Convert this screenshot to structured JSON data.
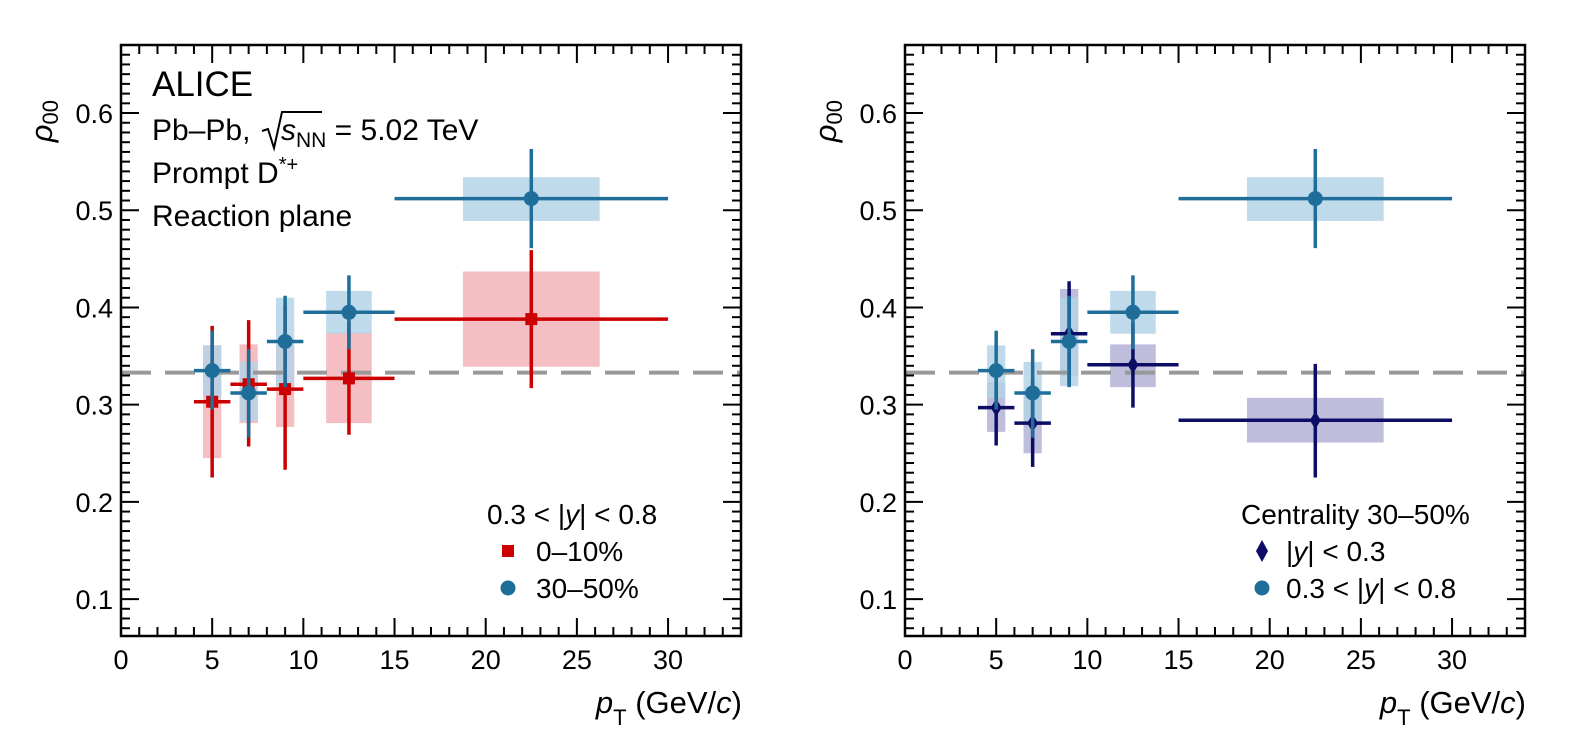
{
  "chart_data": [
    {
      "type": "scatter",
      "xlabel_main": "p",
      "xlabel_sub": "T",
      "xlabel_unit_pre": " (GeV/",
      "xlabel_unit_italic": "c",
      "xlabel_unit_post": ")",
      "ylabel_main": "ρ",
      "ylabel_sub": "00",
      "xlim": [
        0,
        34
      ],
      "ylim": [
        0.062,
        0.67
      ],
      "xticks": [
        "0",
        "5",
        "10",
        "15",
        "20",
        "25",
        "30"
      ],
      "yticks": [
        "0.1",
        "0.2",
        "0.3",
        "0.4",
        "0.5",
        "0.6"
      ],
      "reference_line": 0.333,
      "annotations": {
        "experiment": "ALICE",
        "system_pre": "Pb–Pb, ",
        "system_s": "s",
        "system_nn": "NN",
        "system_post": " = 5.02 TeV",
        "particle_pre": "Prompt D",
        "particle_sup": "*+",
        "method": "Reaction plane"
      },
      "legend": {
        "header_pre": "0.3 < ",
        "header_var": "y",
        "header_post": " < 0.8",
        "placement": "bottom-right"
      },
      "series": [
        {
          "name": "0–10%",
          "marker": "square",
          "color": "#cc0000",
          "syscolor": "#f2b3b8",
          "points": [
            {
              "x": 5.0,
              "xlo": 4,
              "xhi": 6,
              "y": 0.303,
              "ylo": 0.225,
              "yhi": 0.381,
              "sys": [
                0.245,
                0.361
              ]
            },
            {
              "x": 7.0,
              "xlo": 6,
              "xhi": 8,
              "y": 0.321,
              "ylo": 0.257,
              "yhi": 0.387,
              "sys": [
                0.281,
                0.362
              ]
            },
            {
              "x": 9.0,
              "xlo": 8,
              "xhi": 10,
              "y": 0.316,
              "ylo": 0.233,
              "yhi": 0.401,
              "sys": [
                0.277,
                0.361
              ]
            },
            {
              "x": 12.5,
              "xlo": 10,
              "xhi": 15,
              "y": 0.327,
              "ylo": 0.269,
              "yhi": 0.385,
              "sys": [
                0.281,
                0.374
              ]
            },
            {
              "x": 22.5,
              "xlo": 15,
              "xhi": 30,
              "y": 0.388,
              "ylo": 0.317,
              "yhi": 0.459,
              "sys": [
                0.339,
                0.437
              ]
            }
          ]
        },
        {
          "name": "30–50%",
          "marker": "circle",
          "color": "#1f6e9a",
          "syscolor": "#b4d4e6",
          "points": [
            {
              "x": 5.0,
              "xlo": 4,
              "xhi": 6,
              "y": 0.335,
              "ylo": 0.295,
              "yhi": 0.376,
              "sys": [
                0.307,
                0.361
              ]
            },
            {
              "x": 7.0,
              "xlo": 6,
              "xhi": 8,
              "y": 0.312,
              "ylo": 0.266,
              "yhi": 0.357,
              "sys": [
                0.283,
                0.344
              ]
            },
            {
              "x": 9.0,
              "xlo": 8,
              "xhi": 10,
              "y": 0.365,
              "ylo": 0.318,
              "yhi": 0.412,
              "sys": [
                0.319,
                0.41
              ]
            },
            {
              "x": 12.5,
              "xlo": 10,
              "xhi": 15,
              "y": 0.395,
              "ylo": 0.357,
              "yhi": 0.433,
              "sys": [
                0.373,
                0.417
              ]
            },
            {
              "x": 22.5,
              "xlo": 15,
              "xhi": 30,
              "y": 0.512,
              "ylo": 0.461,
              "yhi": 0.563,
              "sys": [
                0.489,
                0.534
              ]
            }
          ]
        }
      ]
    },
    {
      "type": "scatter",
      "xlabel_main": "p",
      "xlabel_sub": "T",
      "xlabel_unit_pre": " (GeV/",
      "xlabel_unit_italic": "c",
      "xlabel_unit_post": ")",
      "ylabel_main": "ρ",
      "ylabel_sub": "00",
      "xlim": [
        0,
        34
      ],
      "ylim": [
        0.062,
        0.67
      ],
      "xticks": [
        "0",
        "5",
        "10",
        "15",
        "20",
        "25",
        "30"
      ],
      "yticks": [
        "0.1",
        "0.2",
        "0.3",
        "0.4",
        "0.5",
        "0.6"
      ],
      "reference_line": 0.333,
      "legend": {
        "header": "Centrality 30–50%",
        "placement": "bottom-right"
      },
      "series": [
        {
          "name_pre": "",
          "name_var": "y",
          "name_post": " < 0.3",
          "marker": "diamond",
          "color": "#0d0d66",
          "syscolor": "#b3b1d6",
          "points": [
            {
              "x": 5.0,
              "xlo": 4,
              "xhi": 6,
              "y": 0.297,
              "ylo": 0.258,
              "yhi": 0.336,
              "sys": [
                0.272,
                0.323
              ]
            },
            {
              "x": 7.0,
              "xlo": 6,
              "xhi": 8,
              "y": 0.281,
              "ylo": 0.236,
              "yhi": 0.327,
              "sys": [
                0.25,
                0.312
              ]
            },
            {
              "x": 9.0,
              "xlo": 8,
              "xhi": 10,
              "y": 0.373,
              "ylo": 0.32,
              "yhi": 0.427,
              "sys": [
                0.329,
                0.419
              ]
            },
            {
              "x": 12.5,
              "xlo": 10,
              "xhi": 15,
              "y": 0.341,
              "ylo": 0.297,
              "yhi": 0.384,
              "sys": [
                0.318,
                0.362
              ]
            },
            {
              "x": 22.5,
              "xlo": 15,
              "xhi": 30,
              "y": 0.284,
              "ylo": 0.225,
              "yhi": 0.342,
              "sys": [
                0.261,
                0.307
              ]
            }
          ]
        },
        {
          "name_pre": "0.3 < ",
          "name_var": "y",
          "name_post": " < 0.8",
          "marker": "circle",
          "color": "#1f6e9a",
          "syscolor": "#b4d4e6",
          "points": [
            {
              "x": 5.0,
              "xlo": 4,
              "xhi": 6,
              "y": 0.335,
              "ylo": 0.295,
              "yhi": 0.376,
              "sys": [
                0.307,
                0.361
              ]
            },
            {
              "x": 7.0,
              "xlo": 6,
              "xhi": 8,
              "y": 0.312,
              "ylo": 0.266,
              "yhi": 0.357,
              "sys": [
                0.283,
                0.344
              ]
            },
            {
              "x": 9.0,
              "xlo": 8,
              "xhi": 10,
              "y": 0.365,
              "ylo": 0.318,
              "yhi": 0.412,
              "sys": [
                0.319,
                0.41
              ]
            },
            {
              "x": 12.5,
              "xlo": 10,
              "xhi": 15,
              "y": 0.395,
              "ylo": 0.357,
              "yhi": 0.433,
              "sys": [
                0.373,
                0.417
              ]
            },
            {
              "x": 22.5,
              "xlo": 15,
              "xhi": 30,
              "y": 0.512,
              "ylo": 0.461,
              "yhi": 0.563,
              "sys": [
                0.489,
                0.534
              ]
            }
          ]
        }
      ]
    }
  ]
}
